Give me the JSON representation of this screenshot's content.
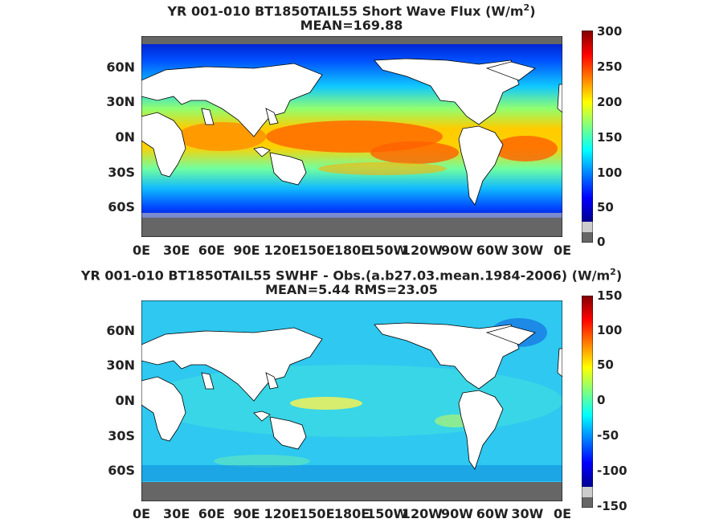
{
  "panels": [
    {
      "title_line1": "YR 001-010 BT1850TAIL55  Short Wave Flux (W/m",
      "title_sup": "2",
      "title_close": ")",
      "title_line2": "MEAN=169.88",
      "colorbar_ticks": [
        "300",
        "250",
        "200",
        "150",
        "100",
        "50",
        "0"
      ]
    },
    {
      "title_line1": "YR 001-010 BT1850TAIL55 SWHF - Obs.(a.b27.03.mean.1984-2006) (W/m",
      "title_sup": "2",
      "title_close": ")",
      "title_line2": "MEAN=5.44 RMS=23.05",
      "colorbar_ticks": [
        "150",
        "100",
        "50",
        "0",
        "-50",
        "-100",
        "-150"
      ]
    }
  ],
  "lat_labels": [
    "60N",
    "30N",
    "0N",
    "30S",
    "60S"
  ],
  "lon_labels": [
    "0E",
    "30E",
    "60E",
    "90E",
    "120E",
    "150E",
    "180E",
    "150W",
    "120W",
    "90W",
    "60W",
    "30W",
    "0E"
  ],
  "colors": {
    "land": "#ffffff",
    "sea_ice": "#666666",
    "missing": "#cccccc",
    "colormap": [
      "#00008f",
      "#0000ff",
      "#0080ff",
      "#00ffff",
      "#80ff80",
      "#ffff00",
      "#ff8000",
      "#ff0000",
      "#800000"
    ]
  }
}
